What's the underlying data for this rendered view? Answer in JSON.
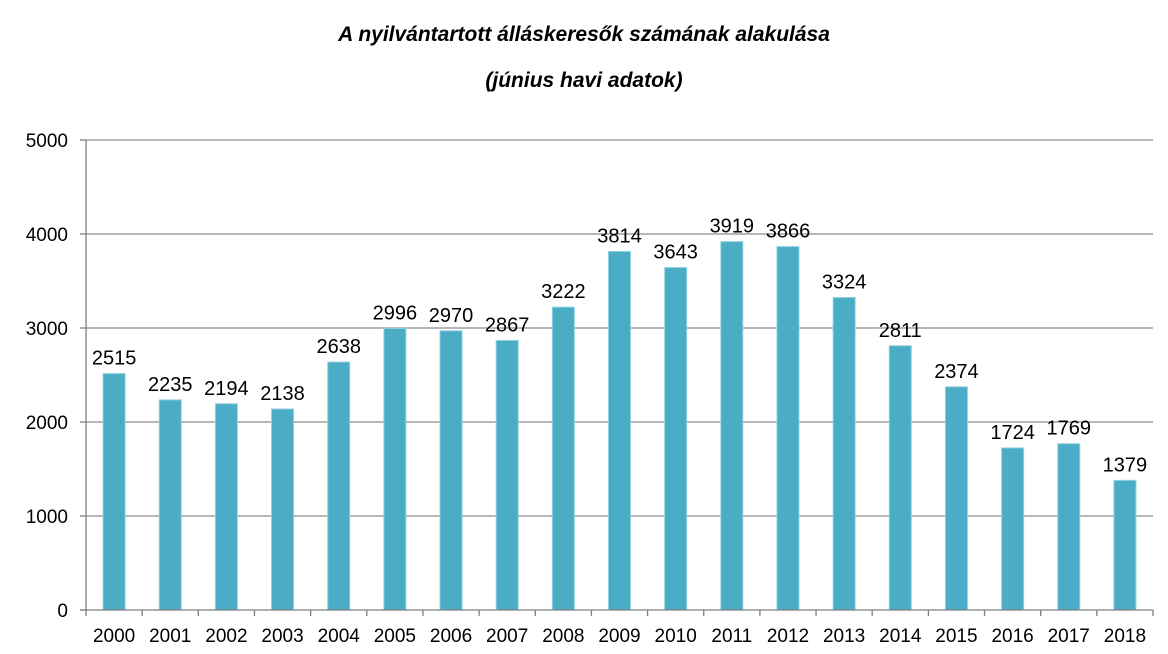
{
  "chart_data": {
    "type": "bar",
    "title": "A nyilvántartott álláskeresők számának alakulása",
    "subtitle": "(június havi adatok)",
    "xlabel": "",
    "ylabel": "",
    "ylim": [
      0,
      5000
    ],
    "yticks": [
      0,
      1000,
      2000,
      3000,
      4000,
      5000
    ],
    "grid": true,
    "legend": "none",
    "categories": [
      "2000",
      "2001",
      "2002",
      "2003",
      "2004",
      "2005",
      "2006",
      "2007",
      "2008",
      "2009",
      "2010",
      "2011",
      "2012",
      "2013",
      "2014",
      "2015",
      "2016",
      "2017",
      "2018"
    ],
    "series": [
      {
        "values": [
          2515,
          2235,
          2194,
          2138,
          2638,
          2996,
          2970,
          2867,
          3222,
          3814,
          3643,
          3919,
          3866,
          3324,
          2811,
          2374,
          1724,
          1769,
          1379
        ]
      }
    ],
    "colors": {
      "bar": "#4bacc6",
      "bar_edge": "#8fd1e0",
      "grid": "#8c8c8c",
      "axis": "#7f7f7f"
    }
  }
}
